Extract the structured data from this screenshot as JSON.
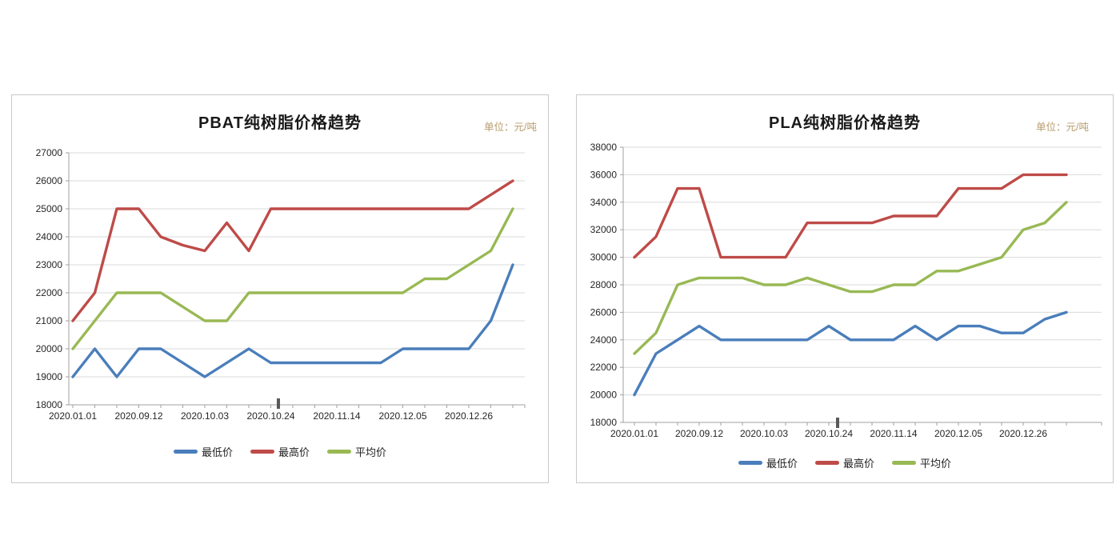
{
  "page": {
    "background": "#ffffff"
  },
  "chart_data": [
    {
      "type": "line",
      "title": "PBAT纯树脂价格趋势",
      "unit_label": "单位：元/吨",
      "ylim": [
        18000,
        27000
      ],
      "ytick_step": 1000,
      "y_tick_labels": [
        "27000",
        "26000",
        "25000",
        "24000",
        "23000",
        "22000",
        "21000",
        "20000",
        "19000",
        "18000"
      ],
      "x_tick_labels": [
        "2020.01.01",
        "2020.09.12",
        "2020.10.03",
        "2020.10.24",
        "2020.11.14",
        "2020.12.05",
        "2020.12.26"
      ],
      "x_label_indices": [
        0,
        3,
        6,
        9,
        12,
        15,
        18
      ],
      "n_points": 21,
      "grid": "horizontal",
      "legend_position": "bottom",
      "colors": {
        "grid": "#d9d9d9",
        "axis": "#a0a0a0",
        "tick_text": "#262626",
        "title_text": "#1a1a1a",
        "unit_text": "#b79b6b"
      },
      "series": [
        {
          "key": "lowest-price",
          "name": "最低价",
          "color": "#4a7ebb",
          "values": [
            19000,
            20000,
            19000,
            20000,
            20000,
            19500,
            19000,
            19500,
            20000,
            19500,
            19500,
            19500,
            19500,
            19500,
            19500,
            20000,
            20000,
            20000,
            20000,
            21000,
            23000
          ]
        },
        {
          "key": "highest-price",
          "name": "最高价",
          "color": "#be4b48",
          "values": [
            21000,
            22000,
            25000,
            25000,
            24000,
            23700,
            23500,
            24500,
            23500,
            25000,
            25000,
            25000,
            25000,
            25000,
            25000,
            25000,
            25000,
            25000,
            25000,
            25500,
            26000
          ]
        },
        {
          "key": "average-price",
          "name": "平均价",
          "color": "#98b954",
          "values": [
            20000,
            21000,
            22000,
            22000,
            22000,
            21500,
            21000,
            21000,
            22000,
            22000,
            22000,
            22000,
            22000,
            22000,
            22000,
            22000,
            22500,
            22500,
            23000,
            23500,
            25000
          ]
        }
      ]
    },
    {
      "type": "line",
      "title": "PLA纯树脂价格趋势",
      "unit_label": "单位：元/吨",
      "ylim": [
        18000,
        38000
      ],
      "ytick_step": 2000,
      "y_tick_labels": [
        "38000",
        "36000",
        "34000",
        "32000",
        "30000",
        "28000",
        "26000",
        "24000",
        "22000",
        "20000",
        "18000"
      ],
      "x_tick_labels": [
        "2020.01.01",
        "2020.09.12",
        "2020.10.03",
        "2020.10.24",
        "2020.11.14",
        "2020.12.05",
        "2020.12.26"
      ],
      "x_label_indices": [
        0,
        3,
        6,
        9,
        12,
        15,
        18
      ],
      "n_points": 21,
      "grid": "horizontal",
      "legend_position": "bottom",
      "colors": {
        "grid": "#d9d9d9",
        "axis": "#a0a0a0",
        "tick_text": "#262626",
        "title_text": "#1a1a1a",
        "unit_text": "#b79b6b"
      },
      "series": [
        {
          "key": "lowest-price",
          "name": "最低价",
          "color": "#4a7ebb",
          "values": [
            20000,
            23000,
            24000,
            25000,
            24000,
            24000,
            24000,
            24000,
            24000,
            25000,
            24000,
            24000,
            24000,
            25000,
            24000,
            25000,
            25000,
            24500,
            24500,
            25500,
            26000
          ]
        },
        {
          "key": "highest-price",
          "name": "最高价",
          "color": "#be4b48",
          "values": [
            30000,
            31500,
            35000,
            35000,
            30000,
            30000,
            30000,
            30000,
            32500,
            32500,
            32500,
            32500,
            33000,
            33000,
            33000,
            35000,
            35000,
            35000,
            36000,
            36000,
            36000
          ]
        },
        {
          "key": "average-price",
          "name": "平均价",
          "color": "#98b954",
          "values": [
            23000,
            24500,
            28000,
            28500,
            28500,
            28500,
            28000,
            28000,
            28500,
            28000,
            27500,
            27500,
            28000,
            28000,
            29000,
            29000,
            29500,
            30000,
            32000,
            32500,
            34000
          ]
        }
      ]
    }
  ]
}
